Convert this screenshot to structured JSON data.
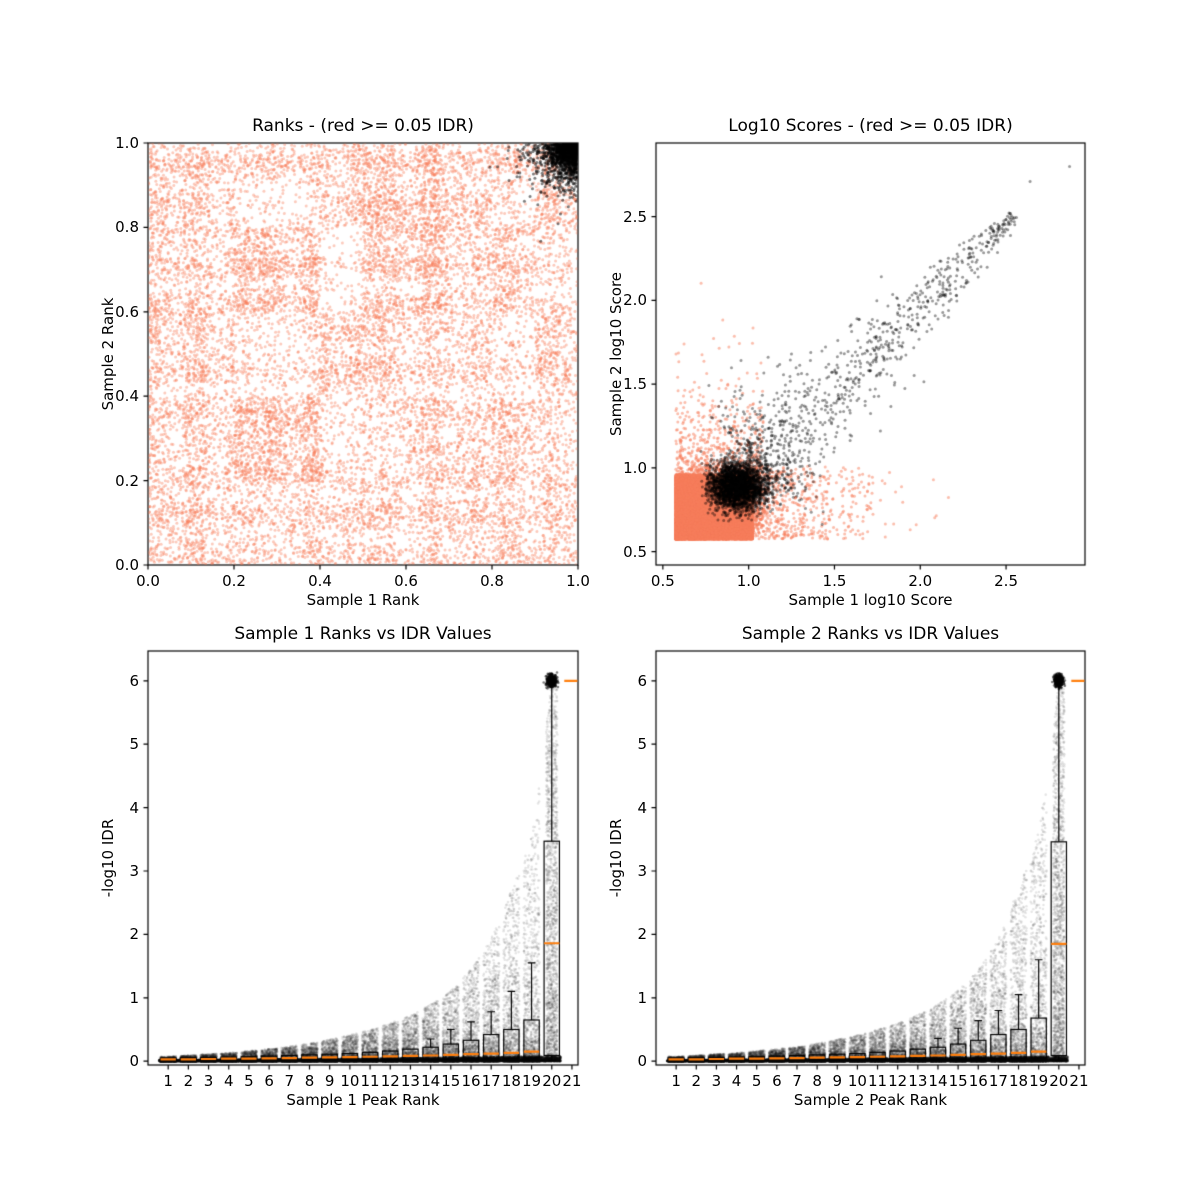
{
  "figure": {
    "background": "#ffffff",
    "note_red_points": "red >= 0.05 IDR",
    "note_black_points": "black < 0.05 IDR"
  },
  "colors": {
    "salmon": "#F87E5B",
    "black": "#000000",
    "median_orange": "#ff7f0e",
    "box_line": "#000000",
    "axis": "#000000"
  },
  "chart_data": [
    {
      "id": "ranks-scatter",
      "type": "scatter",
      "title": "Ranks - (red >= 0.05 IDR)",
      "xlabel": "Sample 1 Rank",
      "ylabel": "Sample 2 Rank",
      "xlim": [
        0.0,
        1.0
      ],
      "ylim": [
        0.0,
        1.0
      ],
      "xticks": {
        "values": [
          0.0,
          0.2,
          0.4,
          0.6,
          0.8,
          1.0
        ],
        "labels": [
          "0.0",
          "0.2",
          "0.4",
          "0.6",
          "0.8",
          "1.0"
        ]
      },
      "yticks": {
        "values": [
          0.0,
          0.2,
          0.4,
          0.6,
          0.8,
          1.0
        ],
        "labels": [
          "0.0",
          "0.2",
          "0.4",
          "0.6",
          "0.8",
          "1.0"
        ]
      },
      "grid": false,
      "legend": "none",
      "series": [
        {
          "name": "IDR >= 0.05 (red)",
          "kind": "grid_scatter",
          "color": "#F87E5B",
          "alpha": 0.4,
          "radius": 1.5,
          "n": 30000,
          "seed": 11,
          "grid_rows_top_to_bottom": [
            [
              0.5,
              0.5,
              0.4,
              0.45,
              0.5,
              0.6,
              0.6,
              0.5,
              0.55,
              0.35
            ],
            [
              0.5,
              0.45,
              0.15,
              0.2,
              0.5,
              0.65,
              0.6,
              0.5,
              0.25,
              0.5
            ],
            [
              0.5,
              0.4,
              0.65,
              0.6,
              0.2,
              0.6,
              0.65,
              0.5,
              0.6,
              0.3
            ],
            [
              0.5,
              0.45,
              0.6,
              0.55,
              0.2,
              0.55,
              0.6,
              0.45,
              0.55,
              0.3
            ],
            [
              0.5,
              0.5,
              0.2,
              0.25,
              0.6,
              0.6,
              0.4,
              0.4,
              0.25,
              0.45
            ],
            [
              0.5,
              0.45,
              0.25,
              0.3,
              0.55,
              0.55,
              0.35,
              0.4,
              0.3,
              0.45
            ],
            [
              0.45,
              0.4,
              0.65,
              0.65,
              0.25,
              0.3,
              0.45,
              0.4,
              0.55,
              0.25
            ],
            [
              0.45,
              0.4,
              0.65,
              0.65,
              0.3,
              0.25,
              0.45,
              0.4,
              0.5,
              0.3
            ],
            [
              0.5,
              0.45,
              0.35,
              0.4,
              0.45,
              0.5,
              0.4,
              0.45,
              0.35,
              0.4
            ],
            [
              0.5,
              0.45,
              0.4,
              0.45,
              0.4,
              0.45,
              0.4,
              0.4,
              0.45,
              0.35
            ]
          ]
        },
        {
          "name": "IDR < 0.05 (black)",
          "kind": "corner_blob",
          "color": "#000000",
          "alpha": 0.5,
          "radius": 1.5,
          "n": 2100,
          "seed": 23,
          "corner": [
            1.0,
            1.0
          ],
          "sigma": 0.05
        }
      ]
    },
    {
      "id": "log10-scores-scatter",
      "type": "scatter",
      "title": "Log10 Scores - (red >= 0.05 IDR)",
      "xlabel": "Sample 1 log10 Score",
      "ylabel": "Sample 2 log10 Score",
      "xlim": [
        0.46,
        2.96
      ],
      "ylim": [
        0.42,
        2.94
      ],
      "xticks": {
        "values": [
          0.5,
          1.0,
          1.5,
          2.0,
          2.5
        ],
        "labels": [
          "0.5",
          "1.0",
          "1.5",
          "2.0",
          "2.5"
        ]
      },
      "yticks": {
        "values": [
          0.5,
          1.0,
          1.5,
          2.0,
          2.5
        ],
        "labels": [
          "0.5",
          "1.0",
          "1.5",
          "2.0",
          "2.5"
        ]
      },
      "grid": false,
      "legend": "none",
      "series": [
        {
          "name": "IDR >= 0.05 (red)",
          "kind": "score_blob",
          "color": "#F87E5B",
          "alpha": 0.5,
          "radius": 1.5,
          "n": 16000,
          "seed": 37,
          "origin": [
            0.575,
            0.575
          ],
          "span": [
            0.45,
            0.385
          ],
          "pow": 1.5,
          "fringe_n": 2600,
          "fringe_sigma": 0.17
        },
        {
          "name": "IDR < 0.05 (black)",
          "kind": "score_comet",
          "color": "#000000",
          "alpha": 0.4,
          "radius": 1.5,
          "seed": 41,
          "core": {
            "center": [
              0.94,
              0.89
            ],
            "sigma": [
              0.085,
              0.075
            ],
            "n": 2600
          },
          "tail": {
            "n": 900,
            "from": 1.05,
            "to": 2.55,
            "spread0": 0.16,
            "spread1": 0.025,
            "pow": 1.8
          },
          "outliers": [
            [
              2.64,
              2.71
            ],
            [
              2.87,
              2.8
            ],
            [
              2.42,
              2.43
            ],
            [
              2.3,
              2.18
            ],
            [
              2.22,
              2.26
            ],
            [
              2.1,
              2.05
            ]
          ]
        }
      ]
    },
    {
      "id": "sample1-rank-vs-idr",
      "type": "scatter",
      "title": "Sample 1 Ranks vs IDR Values",
      "xlabel": "Sample 1 Peak Rank",
      "ylabel": "-log10 IDR",
      "xlim": [
        0.0,
        21.3
      ],
      "ylim": [
        -0.06,
        6.47
      ],
      "xticks": {
        "values": [
          1,
          2,
          3,
          4,
          5,
          6,
          7,
          8,
          9,
          10,
          11,
          12,
          13,
          14,
          15,
          16,
          17,
          18,
          19,
          20,
          21
        ],
        "labels": [
          "1",
          "2",
          "3",
          "4",
          "5",
          "6",
          "7",
          "8",
          "9",
          "10",
          "11",
          "12",
          "13",
          "14",
          "15",
          "16",
          "17",
          "18",
          "19",
          "20",
          "21"
        ]
      },
      "yticks": {
        "values": [
          0,
          1,
          2,
          3,
          4,
          5,
          6
        ],
        "labels": [
          "0",
          "1",
          "2",
          "3",
          "4",
          "5",
          "6"
        ]
      },
      "grid": false,
      "legend": "none",
      "series": [
        {
          "name": "-log10 IDR scatter",
          "kind": "idr_scatter",
          "color": "#000000",
          "alpha": 0.1,
          "radius": 1.3,
          "seed": 53,
          "n_per_rank": 1300,
          "pow": 4.0,
          "col_half": 0.4,
          "last_col_half": 0.28,
          "last_pow": 1.6,
          "envelope": [
            0.07,
            0.09,
            0.11,
            0.13,
            0.16,
            0.19,
            0.23,
            0.28,
            0.34,
            0.41,
            0.5,
            0.6,
            0.73,
            0.9,
            1.12,
            1.45,
            1.95,
            2.7,
            3.6,
            6.05
          ],
          "top_blob": {
            "y": 6.0,
            "n": 480,
            "sx": 0.11,
            "sy": 0.045,
            "alpha": 0.5
          },
          "baseline": {
            "n": 8000,
            "alpha": 0.22
          }
        },
        {
          "name": "per-rank boxplots",
          "kind": "boxplots",
          "box_color": "#000000",
          "median_color": "#ff7f0e",
          "width": 0.76,
          "line_width": 1.2,
          "median_width": 2.2,
          "ranks": [
            1,
            2,
            3,
            4,
            5,
            6,
            7,
            8,
            9,
            10,
            11,
            12,
            13,
            14,
            15,
            16,
            17,
            18,
            19,
            20,
            21
          ],
          "q1": [
            0.01,
            0.01,
            0.01,
            0.012,
            0.012,
            0.015,
            0.015,
            0.018,
            0.02,
            0.02,
            0.022,
            0.025,
            0.028,
            0.03,
            0.032,
            0.035,
            0.04,
            0.045,
            0.05,
            0.09,
            6.0
          ],
          "q3": [
            0.05,
            0.055,
            0.06,
            0.065,
            0.07,
            0.08,
            0.09,
            0.1,
            0.11,
            0.12,
            0.14,
            0.16,
            0.19,
            0.22,
            0.27,
            0.33,
            0.42,
            0.5,
            0.65,
            3.47,
            6.0
          ],
          "median": [
            0.03,
            0.03,
            0.035,
            0.04,
            0.04,
            0.045,
            0.05,
            0.055,
            0.06,
            0.065,
            0.07,
            0.075,
            0.085,
            0.09,
            0.1,
            0.11,
            0.12,
            0.13,
            0.15,
            1.86,
            6.0
          ],
          "whisker_high": [
            null,
            null,
            null,
            null,
            null,
            null,
            null,
            null,
            null,
            null,
            null,
            null,
            null,
            0.35,
            0.5,
            0.62,
            0.78,
            1.1,
            1.55,
            6.0,
            null
          ],
          "whisker_low": [
            null,
            null,
            null,
            null,
            null,
            null,
            null,
            null,
            null,
            null,
            null,
            null,
            null,
            null,
            null,
            null,
            null,
            null,
            null,
            0.01,
            null
          ]
        }
      ]
    },
    {
      "id": "sample2-rank-vs-idr",
      "type": "scatter",
      "title": "Sample 2 Ranks vs IDR Values",
      "xlabel": "Sample 2 Peak Rank",
      "ylabel": "-log10 IDR",
      "xlim": [
        0.0,
        21.3
      ],
      "ylim": [
        -0.06,
        6.47
      ],
      "xticks": {
        "values": [
          1,
          2,
          3,
          4,
          5,
          6,
          7,
          8,
          9,
          10,
          11,
          12,
          13,
          14,
          15,
          16,
          17,
          18,
          19,
          20,
          21
        ],
        "labels": [
          "1",
          "2",
          "3",
          "4",
          "5",
          "6",
          "7",
          "8",
          "9",
          "10",
          "11",
          "12",
          "13",
          "14",
          "15",
          "16",
          "17",
          "18",
          "19",
          "20",
          "21"
        ]
      },
      "yticks": {
        "values": [
          0,
          1,
          2,
          3,
          4,
          5,
          6
        ],
        "labels": [
          "0",
          "1",
          "2",
          "3",
          "4",
          "5",
          "6"
        ]
      },
      "grid": false,
      "legend": "none",
      "series": [
        {
          "name": "-log10 IDR scatter",
          "kind": "idr_scatter",
          "color": "#000000",
          "alpha": 0.1,
          "radius": 1.3,
          "seed": 67,
          "n_per_rank": 1300,
          "pow": 4.0,
          "col_half": 0.4,
          "last_col_half": 0.28,
          "last_pow": 1.6,
          "envelope": [
            0.07,
            0.09,
            0.11,
            0.13,
            0.16,
            0.19,
            0.23,
            0.28,
            0.34,
            0.41,
            0.5,
            0.6,
            0.73,
            0.9,
            1.12,
            1.45,
            1.95,
            2.75,
            3.65,
            6.05
          ],
          "top_blob": {
            "y": 6.0,
            "n": 480,
            "sx": 0.11,
            "sy": 0.045,
            "alpha": 0.5
          },
          "baseline": {
            "n": 8000,
            "alpha": 0.22
          }
        },
        {
          "name": "per-rank boxplots",
          "kind": "boxplots",
          "box_color": "#000000",
          "median_color": "#ff7f0e",
          "width": 0.76,
          "line_width": 1.2,
          "median_width": 2.2,
          "ranks": [
            1,
            2,
            3,
            4,
            5,
            6,
            7,
            8,
            9,
            10,
            11,
            12,
            13,
            14,
            15,
            16,
            17,
            18,
            19,
            20,
            21
          ],
          "q1": [
            0.01,
            0.01,
            0.01,
            0.012,
            0.012,
            0.015,
            0.015,
            0.018,
            0.02,
            0.02,
            0.022,
            0.025,
            0.028,
            0.03,
            0.032,
            0.035,
            0.04,
            0.045,
            0.05,
            0.09,
            6.0
          ],
          "q3": [
            0.05,
            0.055,
            0.06,
            0.065,
            0.07,
            0.08,
            0.09,
            0.1,
            0.11,
            0.12,
            0.14,
            0.16,
            0.19,
            0.22,
            0.27,
            0.33,
            0.42,
            0.5,
            0.68,
            3.46,
            6.0
          ],
          "median": [
            0.03,
            0.03,
            0.035,
            0.04,
            0.04,
            0.045,
            0.05,
            0.055,
            0.06,
            0.065,
            0.07,
            0.075,
            0.085,
            0.09,
            0.1,
            0.11,
            0.12,
            0.13,
            0.15,
            1.85,
            6.0
          ],
          "whisker_high": [
            null,
            null,
            null,
            null,
            null,
            null,
            null,
            null,
            null,
            null,
            null,
            null,
            null,
            0.36,
            0.52,
            0.64,
            0.8,
            1.05,
            1.6,
            6.0,
            null
          ],
          "whisker_low": [
            null,
            null,
            null,
            null,
            null,
            null,
            null,
            null,
            null,
            null,
            null,
            null,
            null,
            null,
            null,
            null,
            null,
            null,
            null,
            0.01,
            null
          ]
        }
      ]
    }
  ]
}
